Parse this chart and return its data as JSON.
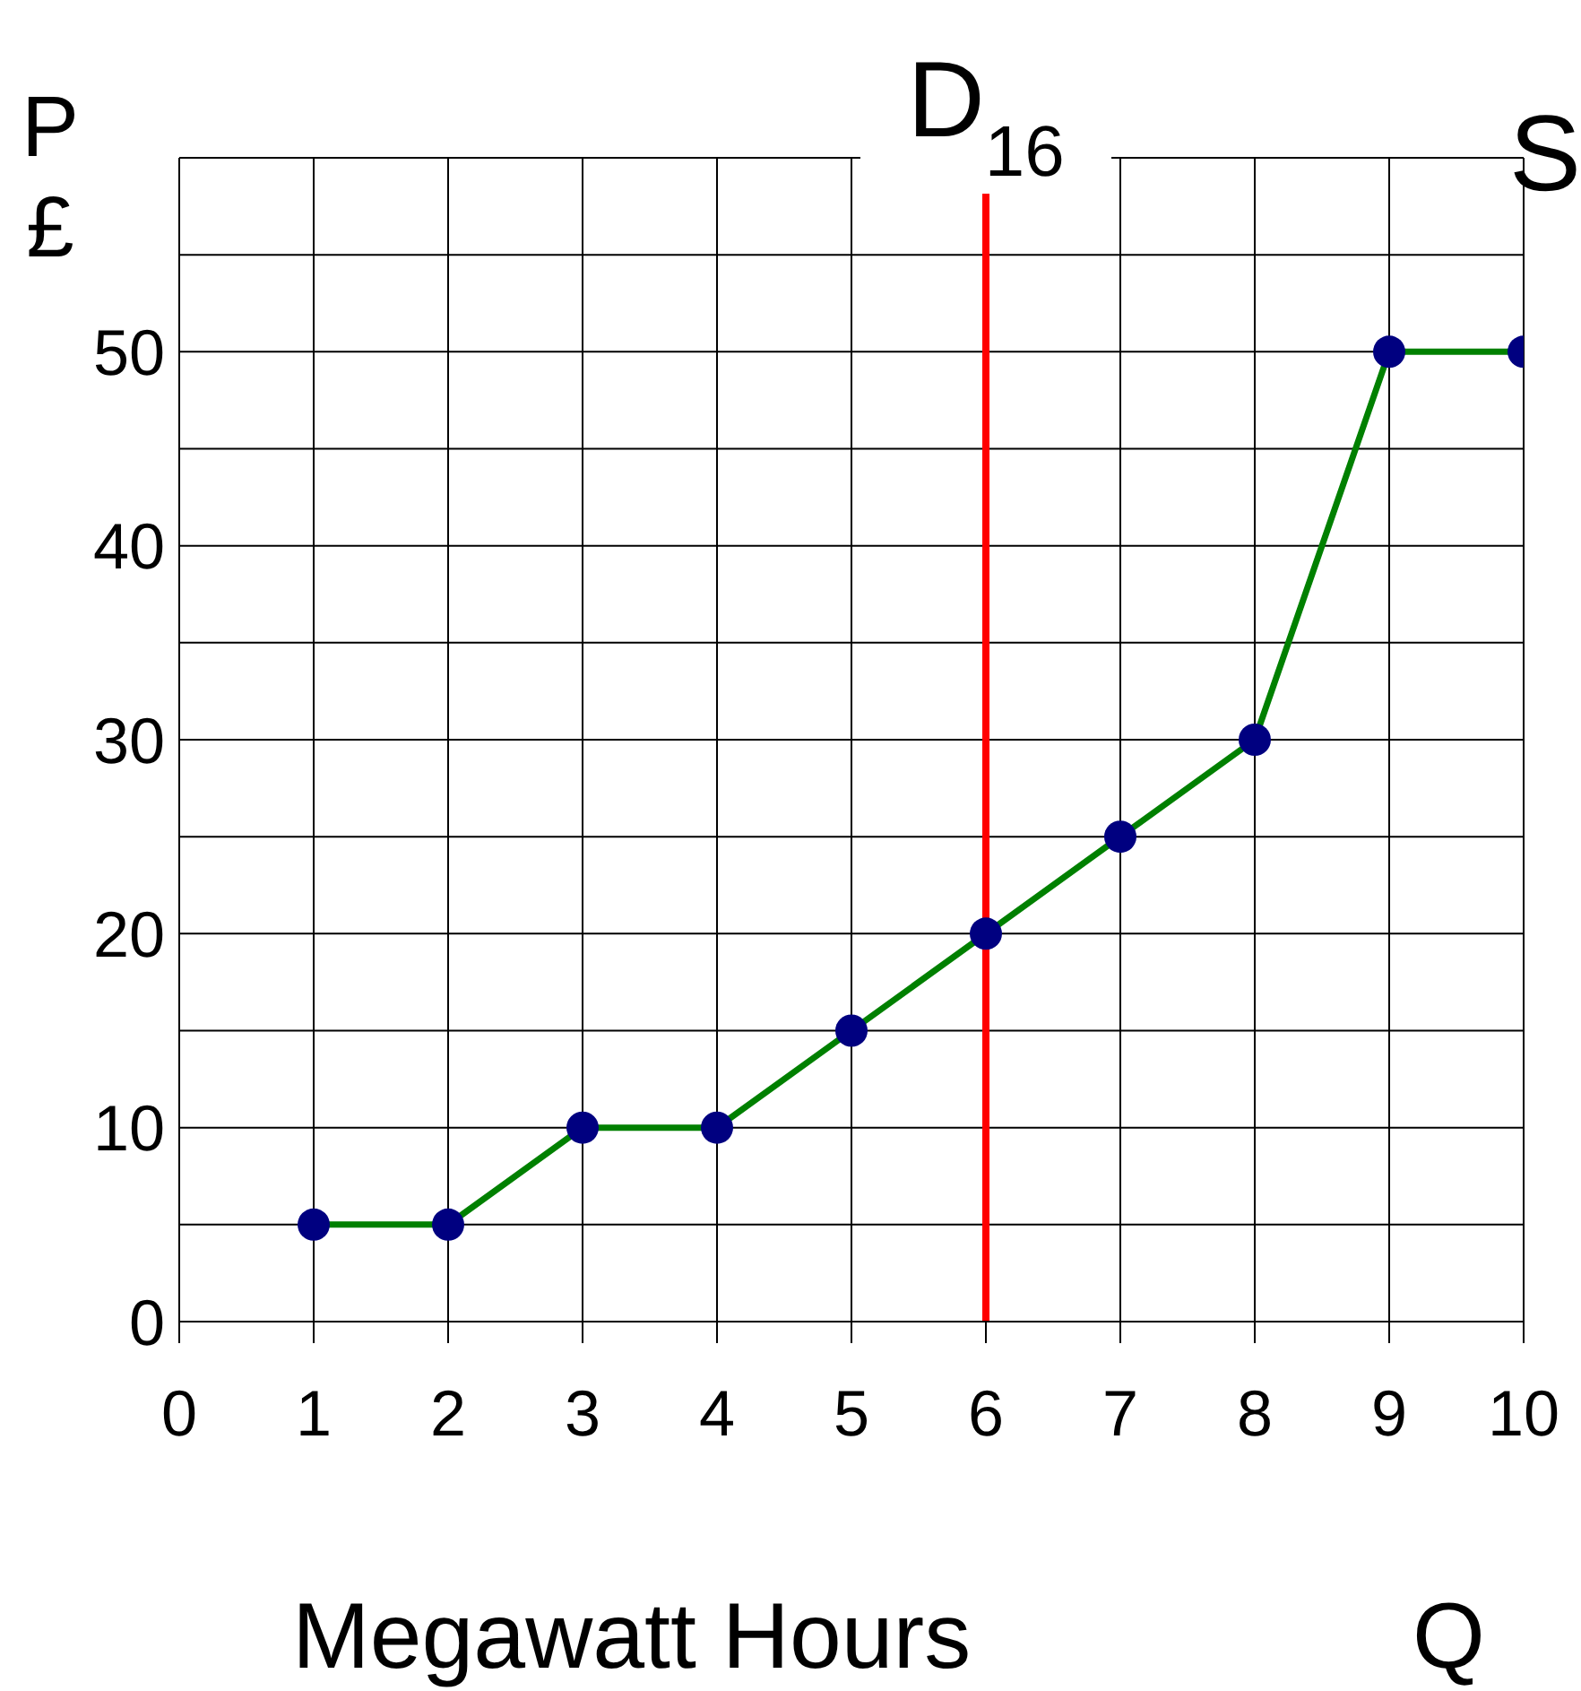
{
  "chart_data": {
    "type": "line",
    "ylabel": "P £",
    "xlabel": "Megawatt Hours",
    "annotations": [
      "Q"
    ],
    "x": [
      1,
      2,
      3,
      4,
      5,
      6,
      7,
      8,
      9,
      10
    ],
    "series": [
      {
        "name": "S",
        "color": "#008000",
        "colors": [
          "#000080",
          "#000080",
          "#000080",
          "#000080",
          "#000080",
          "#000080",
          "#000080",
          "#000080",
          "#000080",
          "#000080"
        ],
        "values": [
          5,
          5,
          10,
          10,
          15,
          20,
          25,
          30,
          50,
          50
        ]
      }
    ],
    "xlim": [
      0,
      10
    ],
    "xticks": [
      0,
      1,
      2,
      3,
      4,
      5,
      6,
      7,
      8,
      9,
      10
    ],
    "ylim": [
      0,
      60
    ],
    "yticks": [
      0,
      {
        "value": 5,
        "label": null
      },
      10,
      {
        "value": 15,
        "label": null
      },
      20,
      {
        "value": 25,
        "label": null
      },
      30,
      {
        "value": 35,
        "label": null
      },
      40,
      {
        "value": 45,
        "label": null
      },
      50,
      {
        "value": 55,
        "label": null
      },
      {
        "value": 60,
        "label": null
      }
    ],
    "ref_lines": [
      {
        "axis": "x",
        "value": 6,
        "label": "D$_{16}$",
        "color": "#ff0000"
      }
    ],
    "grid": true,
    "marker": "circle",
    "line_style": "solid"
  }
}
